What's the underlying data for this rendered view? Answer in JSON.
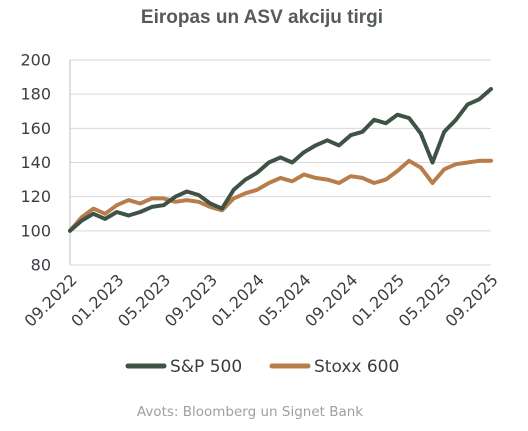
{
  "chart_data": {
    "type": "line",
    "title": "Eiropas un ASV akciju tirgi",
    "xlabel": "",
    "ylabel": "",
    "ylim": [
      80,
      200
    ],
    "yticks": [
      80,
      100,
      120,
      140,
      160,
      180,
      200
    ],
    "xticks": [
      "09.2022",
      "01.2023",
      "05.2023",
      "09.2023",
      "01.2024",
      "05.2024",
      "09.2024",
      "01.2025",
      "05.2025",
      "09.2025"
    ],
    "grid": "horizontal",
    "legend_position": "bottom",
    "source": "Avots: Bloomberg un Signet Bank",
    "x": [
      "09.2022",
      "10.2022",
      "11.2022",
      "12.2022",
      "01.2023",
      "02.2023",
      "03.2023",
      "04.2023",
      "05.2023",
      "06.2023",
      "07.2023",
      "08.2023",
      "09.2023",
      "10.2023",
      "11.2023",
      "12.2023",
      "01.2024",
      "02.2024",
      "03.2024",
      "04.2024",
      "05.2024",
      "06.2024",
      "07.2024",
      "08.2024",
      "09.2024",
      "10.2024",
      "11.2024",
      "12.2024",
      "01.2025",
      "02.2025",
      "03.2025",
      "04.2025",
      "05.2025",
      "06.2025",
      "07.2025",
      "08.2025",
      "09.2025"
    ],
    "series": [
      {
        "name": "S&P 500",
        "color": "#3e5346",
        "values": [
          100,
          106,
          110,
          107,
          111,
          109,
          111,
          114,
          115,
          120,
          123,
          121,
          116,
          113,
          124,
          130,
          134,
          140,
          143,
          140,
          146,
          150,
          153,
          150,
          156,
          158,
          165,
          163,
          168,
          166,
          157,
          140,
          158,
          165,
          174,
          177,
          183
        ]
      },
      {
        "name": "Stoxx 600",
        "color": "#b87d4b",
        "values": [
          100,
          108,
          113,
          110,
          115,
          118,
          116,
          119,
          119,
          117,
          118,
          117,
          114,
          112,
          119,
          122,
          124,
          128,
          131,
          129,
          133,
          131,
          130,
          128,
          132,
          131,
          128,
          130,
          135,
          141,
          137,
          128,
          136,
          139,
          140,
          141,
          141
        ]
      }
    ]
  }
}
